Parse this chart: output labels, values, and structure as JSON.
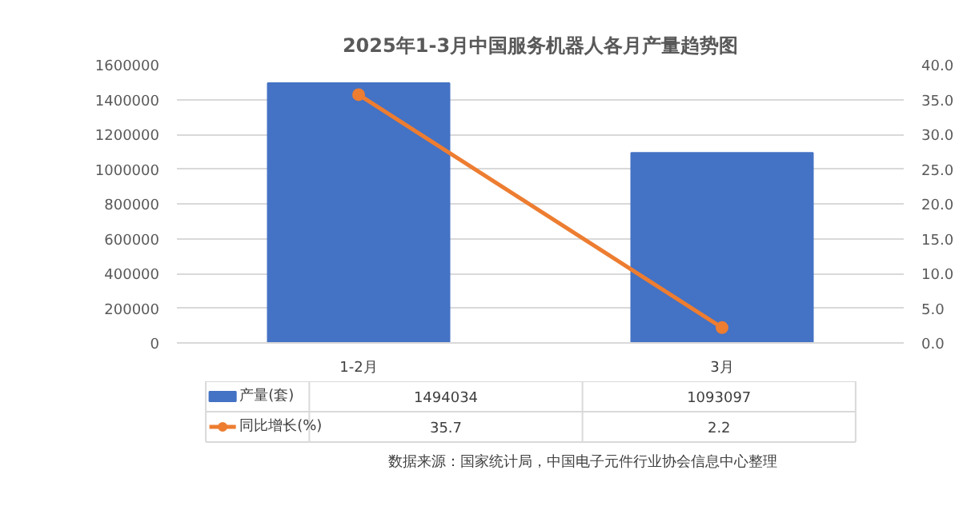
{
  "chart_data": {
    "type": "bar",
    "title": "2025年1-3月中国服务机器人各月产量趋势图",
    "categories": [
      "1-2月",
      "3月"
    ],
    "series": [
      {
        "name": "产量(套)",
        "color": "#4472c4",
        "values": [
          1494034,
          1093097
        ]
      },
      {
        "name": "同比增长(%)",
        "type": "line",
        "axis": "y2",
        "color": "#ed7d31",
        "values": [
          35.7,
          2.2
        ]
      }
    ],
    "ylim": [
      0,
      1600000
    ],
    "yticks": [
      0,
      200000,
      400000,
      600000,
      800000,
      1000000,
      1200000,
      1400000,
      1600000
    ],
    "y2lim": [
      0,
      40
    ],
    "y2ticks": [
      {
        "value": 0,
        "label": "0.0"
      },
      {
        "value": 5,
        "label": "5.0"
      },
      {
        "value": 10,
        "label": "10.0"
      },
      {
        "value": 15,
        "label": "15.0"
      },
      {
        "value": 20,
        "label": "20.0"
      },
      {
        "value": 25,
        "label": "25.0"
      },
      {
        "value": 30,
        "label": "30.0"
      },
      {
        "value": 35,
        "label": "35.0"
      },
      {
        "value": 40,
        "label": "40.0"
      }
    ],
    "grid": "y",
    "marker": "circle",
    "data_labels": true,
    "legend": "bottom",
    "annotations": [
      "数据来源：国家统计局，中国电子元件行业协会信息中心整理"
    ]
  }
}
